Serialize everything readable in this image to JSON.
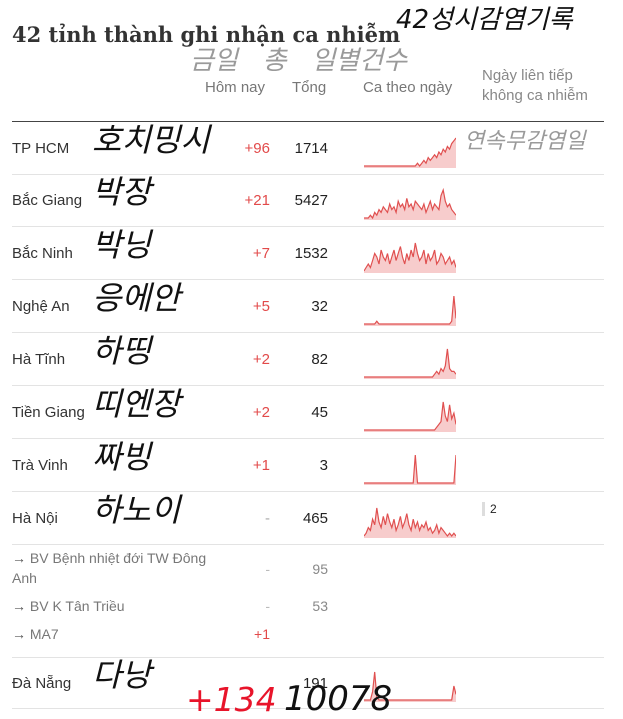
{
  "title": "42 tỉnh thành ghi nhận ca nhiễm",
  "handwriting": {
    "title_note": "42성시감염기록",
    "header_notes": "금일   총   일별건수",
    "streak_note": "연속무감염일",
    "footer_today": "+134",
    "footer_total": "10078"
  },
  "headers": {
    "today": "Hôm nay",
    "total": "Tổng",
    "daily": "Ca theo ngày",
    "streak": "Ngày liên tiếp không ca nhiễm"
  },
  "rows": [
    {
      "name": "TP HCM",
      "note": "호치밍시",
      "today": "+96",
      "total": "1714",
      "spark": [
        0,
        0,
        0,
        0,
        0,
        0,
        0,
        0,
        0,
        0,
        0,
        0,
        0,
        0,
        0,
        0,
        0,
        0,
        0,
        0,
        0,
        0,
        0,
        0,
        0,
        1,
        0,
        1,
        2,
        1,
        3,
        2,
        3,
        4,
        3,
        5,
        4,
        6,
        5,
        7,
        6,
        8,
        9,
        10
      ]
    },
    {
      "name": "Bắc Giang",
      "note": "박장",
      "today": "+21",
      "total": "5427",
      "spark": [
        0,
        0,
        0,
        1,
        0,
        2,
        1,
        3,
        2,
        4,
        3,
        2,
        5,
        3,
        4,
        2,
        6,
        4,
        5,
        3,
        7,
        4,
        5,
        3,
        6,
        5,
        4,
        3,
        5,
        2,
        4,
        6,
        3,
        5,
        4,
        3,
        8,
        10,
        6,
        4,
        5,
        3,
        2,
        1
      ]
    },
    {
      "name": "Bắc Ninh",
      "note": "박닝",
      "today": "+7",
      "total": "1532",
      "spark": [
        0,
        1,
        2,
        1,
        3,
        5,
        4,
        2,
        6,
        4,
        3,
        5,
        2,
        4,
        6,
        3,
        5,
        7,
        4,
        2,
        5,
        3,
        6,
        4,
        8,
        5,
        3,
        4,
        6,
        2,
        5,
        3,
        4,
        6,
        2,
        3,
        5,
        4,
        2,
        3,
        4,
        2,
        3,
        1
      ]
    },
    {
      "name": "Nghệ An",
      "note": "응에안",
      "today": "+5",
      "total": "32",
      "spark": [
        0,
        0,
        0,
        0,
        0,
        0,
        1,
        0,
        0,
        0,
        0,
        0,
        0,
        0,
        0,
        0,
        0,
        0,
        0,
        0,
        0,
        0,
        0,
        0,
        0,
        0,
        0,
        0,
        0,
        0,
        0,
        0,
        0,
        0,
        0,
        0,
        0,
        0,
        0,
        0,
        0,
        1,
        10,
        2
      ]
    },
    {
      "name": "Hà Tĩnh",
      "note": "하띵",
      "today": "+2",
      "total": "82",
      "spark": [
        0,
        0,
        0,
        0,
        0,
        0,
        0,
        0,
        0,
        0,
        0,
        0,
        0,
        0,
        0,
        0,
        0,
        0,
        0,
        0,
        0,
        0,
        0,
        0,
        0,
        0,
        0,
        0,
        0,
        0,
        0,
        0,
        0,
        1,
        2,
        1,
        3,
        2,
        4,
        10,
        3,
        2,
        2,
        1
      ]
    },
    {
      "name": "Tiền Giang",
      "note": "띠엔장",
      "today": "+2",
      "total": "45",
      "spark": [
        0,
        0,
        0,
        0,
        0,
        0,
        0,
        0,
        0,
        0,
        0,
        0,
        0,
        0,
        0,
        0,
        0,
        0,
        0,
        0,
        0,
        0,
        0,
        0,
        0,
        0,
        0,
        0,
        0,
        0,
        0,
        0,
        0,
        0,
        1,
        2,
        3,
        10,
        5,
        3,
        9,
        4,
        6,
        2
      ]
    },
    {
      "name": "Trà Vinh",
      "note": "짜빙",
      "today": "+1",
      "total": "3",
      "spark": [
        0,
        0,
        0,
        0,
        0,
        0,
        0,
        0,
        0,
        0,
        0,
        0,
        0,
        0,
        0,
        0,
        0,
        0,
        0,
        0,
        0,
        0,
        0,
        0,
        10,
        0,
        0,
        0,
        0,
        0,
        0,
        0,
        0,
        0,
        0,
        0,
        0,
        0,
        0,
        0,
        0,
        0,
        0,
        10
      ]
    },
    {
      "name": "Hà Nội",
      "note": "하노이",
      "today": "-",
      "total": "465",
      "streak": "2",
      "spark": [
        0,
        1,
        3,
        2,
        6,
        4,
        10,
        5,
        3,
        7,
        4,
        8,
        5,
        3,
        6,
        2,
        4,
        7,
        3,
        5,
        8,
        4,
        2,
        6,
        3,
        5,
        2,
        4,
        3,
        5,
        2,
        3,
        1,
        2,
        4,
        1,
        3,
        2,
        1,
        0,
        1,
        0,
        1,
        0
      ]
    }
  ],
  "subrows": [
    {
      "arrow": "→",
      "name": "BV Bệnh nhiệt đới TW Đông Anh",
      "today": "-",
      "total": "95"
    },
    {
      "arrow": "→",
      "name": "BV K Tân Triều",
      "today": "-",
      "total": "53"
    },
    {
      "arrow": "→",
      "name": "MA7",
      "today": "+1",
      "total": ""
    }
  ],
  "last_row": {
    "name": "Đà Nẵng",
    "note": "다낭",
    "total": "191",
    "spark": [
      0,
      0,
      0,
      0,
      3,
      10,
      1,
      0,
      0,
      0,
      0,
      0,
      0,
      0,
      0,
      0,
      0,
      0,
      0,
      0,
      0,
      0,
      0,
      0,
      0,
      0,
      0,
      0,
      0,
      0,
      0,
      0,
      0,
      0,
      0,
      0,
      0,
      0,
      0,
      0,
      0,
      0,
      5,
      2
    ]
  },
  "colors": {
    "spark_line": "#e05050",
    "spark_fill": "#f7cccc",
    "accent": "#e24a4a"
  }
}
